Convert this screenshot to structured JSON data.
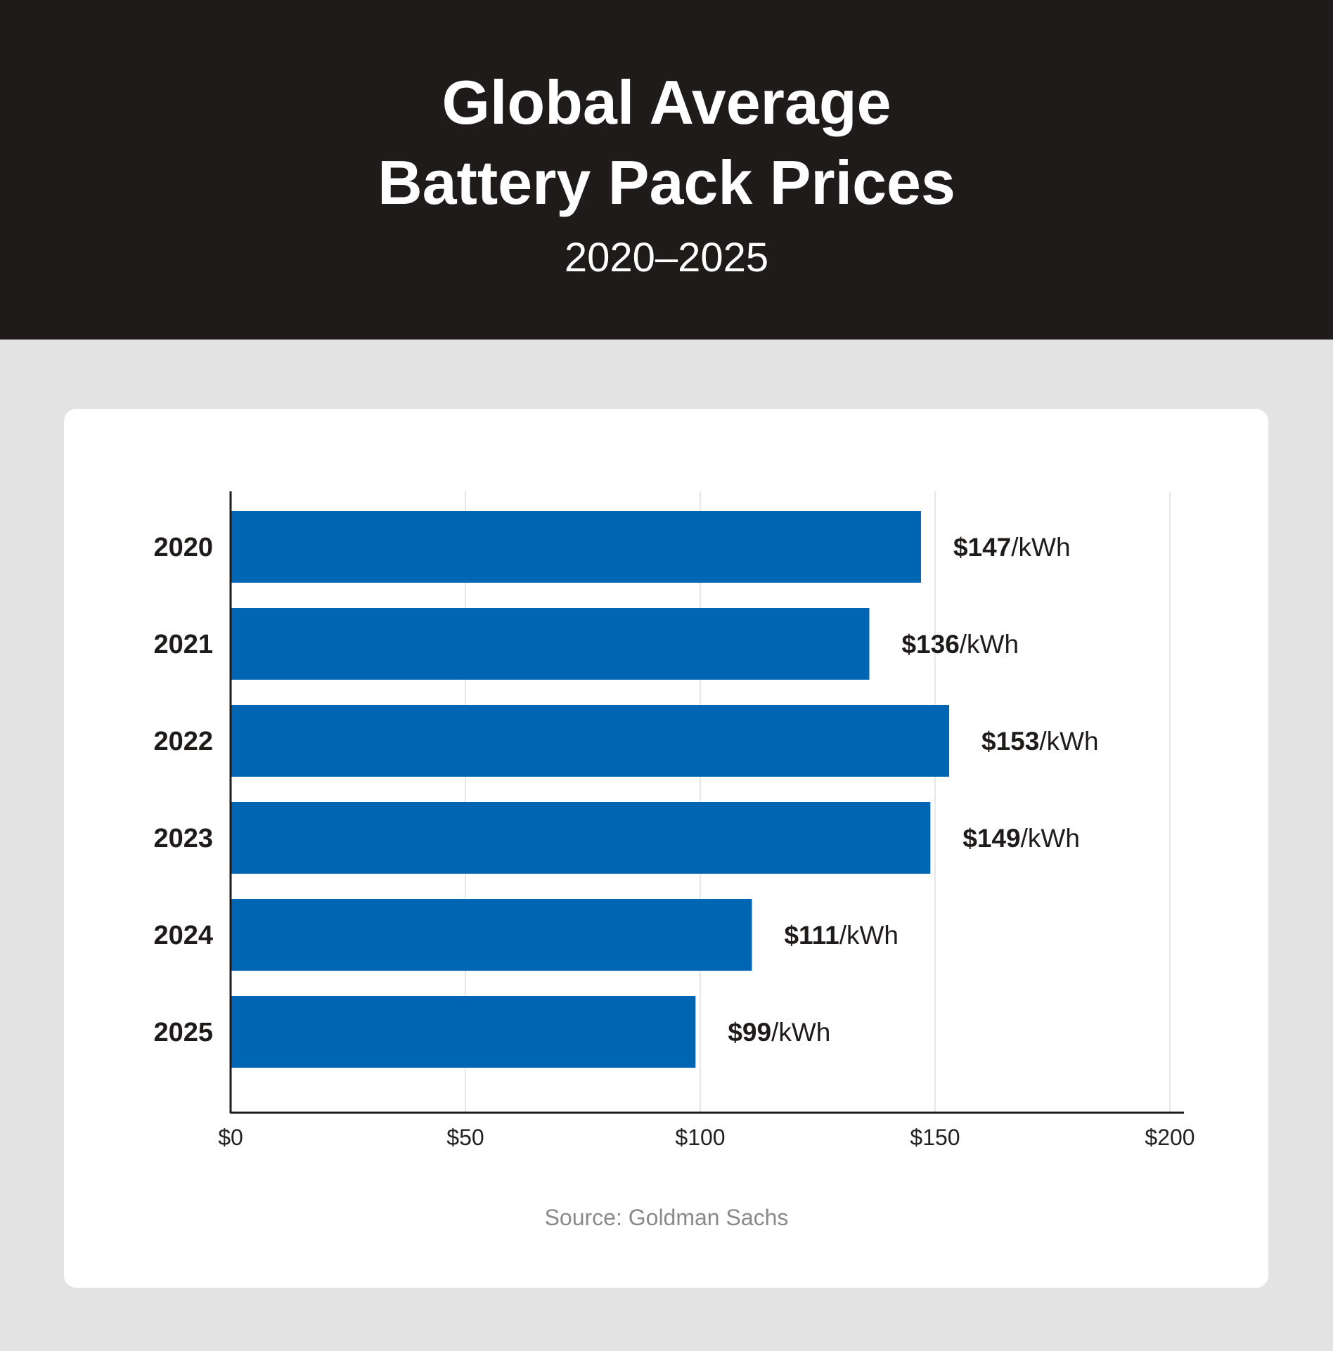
{
  "header": {
    "title_line1": "Global Average",
    "title_line2": "Battery Pack Prices",
    "subtitle": "2020–2025"
  },
  "source": "Source: Goldman Sachs",
  "colors": {
    "header_bg": "#1f1b1a",
    "page_bg": "#e3e3e3",
    "bar": "#0066b3",
    "grid": "#e6e6ec"
  },
  "chart_data": {
    "type": "bar",
    "orientation": "horizontal",
    "title": "Global Average Battery Pack Prices",
    "subtitle": "2020–2025",
    "categories": [
      "2020",
      "2021",
      "2022",
      "2023",
      "2024",
      "2025"
    ],
    "values": [
      147,
      136,
      153,
      149,
      111,
      99
    ],
    "value_labels": [
      "$147",
      "$136",
      "$153",
      "$149",
      "$111",
      "$99"
    ],
    "value_unit": "/kWh",
    "xlim": [
      0,
      200
    ],
    "xticks": [
      0,
      50,
      100,
      150,
      200
    ],
    "xtick_labels": [
      "$0",
      "$50",
      "$100",
      "$150",
      "$200"
    ],
    "xlabel": "",
    "ylabel": "",
    "grid": true,
    "legend": "none"
  }
}
